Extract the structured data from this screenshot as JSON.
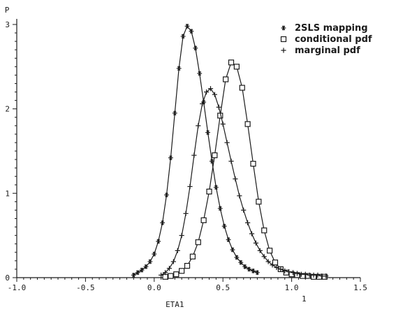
{
  "chart_data": {
    "type": "line",
    "title": "",
    "xlabel": "ETA1",
    "ylabel": "P",
    "xlim": [
      -1.0,
      1.5
    ],
    "ylim": [
      0,
      3
    ],
    "x_ticks": [
      "-1.0",
      "-0.5",
      "0.0",
      "0.5",
      "1.0",
      "1.5"
    ],
    "y_ticks": [
      "0",
      "1",
      "2",
      "3"
    ],
    "annotation": "1",
    "grid": false,
    "legend_position": "top-right",
    "series": [
      {
        "name": "2SLS mapping",
        "marker": "*",
        "x": [
          -0.15,
          -0.12,
          -0.09,
          -0.06,
          -0.03,
          0.0,
          0.03,
          0.06,
          0.09,
          0.12,
          0.15,
          0.18,
          0.21,
          0.24,
          0.27,
          0.3,
          0.33,
          0.36,
          0.39,
          0.42,
          0.45,
          0.48,
          0.51,
          0.54,
          0.57,
          0.6,
          0.63,
          0.66,
          0.69,
          0.72,
          0.75
        ],
        "values": [
          0.03,
          0.06,
          0.09,
          0.13,
          0.19,
          0.28,
          0.43,
          0.65,
          0.98,
          1.42,
          1.95,
          2.48,
          2.86,
          2.98,
          2.92,
          2.72,
          2.42,
          2.08,
          1.72,
          1.38,
          1.07,
          0.82,
          0.61,
          0.45,
          0.33,
          0.24,
          0.18,
          0.13,
          0.1,
          0.08,
          0.06
        ]
      },
      {
        "name": "conditional pdf",
        "marker": "square",
        "x": [
          0.08,
          0.12,
          0.16,
          0.2,
          0.24,
          0.28,
          0.32,
          0.36,
          0.4,
          0.44,
          0.48,
          0.52,
          0.56,
          0.6,
          0.64,
          0.68,
          0.72,
          0.76,
          0.8,
          0.84,
          0.88,
          0.92,
          0.96,
          1.0,
          1.04,
          1.08,
          1.12,
          1.16,
          1.2,
          1.24
        ],
        "values": [
          0.01,
          0.02,
          0.04,
          0.08,
          0.14,
          0.25,
          0.42,
          0.68,
          1.02,
          1.45,
          1.92,
          2.35,
          2.55,
          2.5,
          2.25,
          1.82,
          1.35,
          0.9,
          0.56,
          0.32,
          0.18,
          0.1,
          0.06,
          0.04,
          0.03,
          0.02,
          0.02,
          0.01,
          0.01,
          0.01
        ]
      },
      {
        "name": "marginal pdf",
        "marker": "+",
        "x": [
          0.05,
          0.08,
          0.11,
          0.14,
          0.17,
          0.2,
          0.23,
          0.26,
          0.29,
          0.32,
          0.35,
          0.38,
          0.41,
          0.44,
          0.47,
          0.5,
          0.53,
          0.56,
          0.59,
          0.62,
          0.65,
          0.68,
          0.71,
          0.74,
          0.77,
          0.8,
          0.83,
          0.86,
          0.89,
          0.92,
          0.95,
          0.98,
          1.01,
          1.04,
          1.07,
          1.1,
          1.13,
          1.16,
          1.19,
          1.22,
          1.25
        ],
        "values": [
          0.03,
          0.06,
          0.11,
          0.19,
          0.32,
          0.5,
          0.76,
          1.08,
          1.45,
          1.8,
          2.06,
          2.2,
          2.24,
          2.17,
          2.02,
          1.82,
          1.6,
          1.38,
          1.17,
          0.97,
          0.8,
          0.65,
          0.52,
          0.41,
          0.32,
          0.25,
          0.19,
          0.15,
          0.12,
          0.1,
          0.08,
          0.07,
          0.06,
          0.05,
          0.04,
          0.04,
          0.03,
          0.03,
          0.03,
          0.02,
          0.02
        ]
      }
    ]
  }
}
